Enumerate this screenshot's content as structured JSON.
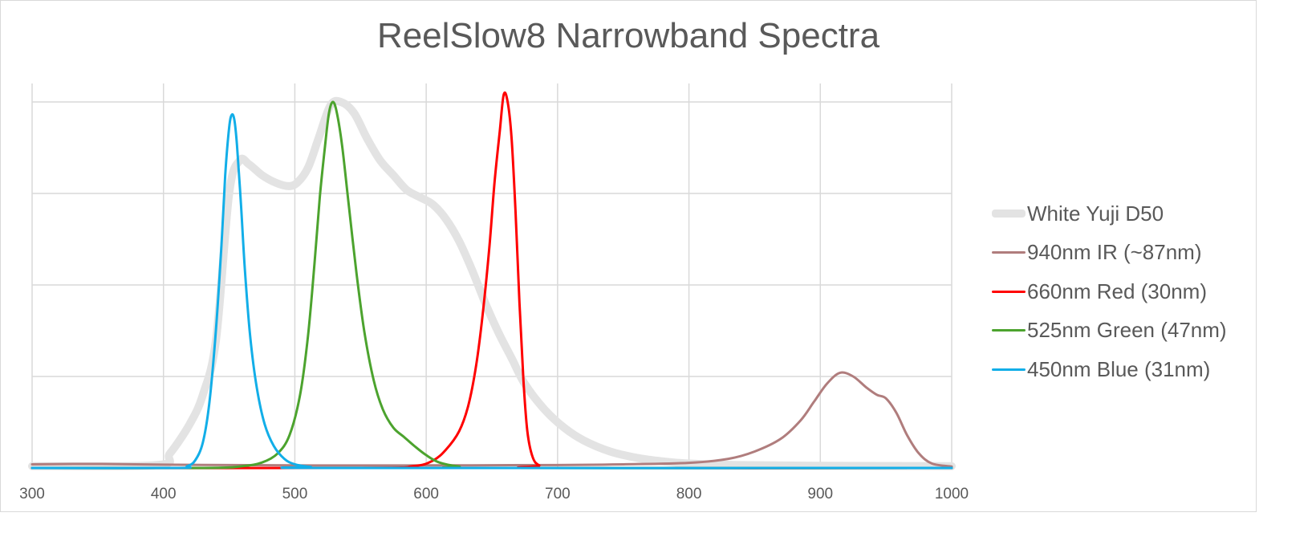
{
  "chart_data": {
    "type": "line",
    "title": "ReelSlow8 Narrowband Spectra",
    "xlabel": "",
    "ylabel": "",
    "xlim": [
      300,
      1000
    ],
    "ylim": [
      0,
      1.0
    ],
    "x_ticks": [
      300,
      400,
      500,
      600,
      700,
      800,
      900,
      1000
    ],
    "grid": true,
    "legend_position": "right",
    "series": [
      {
        "name": "White Yuji D50",
        "color": "#e3e3e3",
        "points": [
          [
            300,
            0.005
          ],
          [
            395,
            0.008
          ],
          [
            405,
            0.04
          ],
          [
            420,
            0.12
          ],
          [
            430,
            0.2
          ],
          [
            440,
            0.35
          ],
          [
            450,
            0.75
          ],
          [
            458,
            0.84
          ],
          [
            465,
            0.83
          ],
          [
            475,
            0.8
          ],
          [
            485,
            0.78
          ],
          [
            495,
            0.77
          ],
          [
            502,
            0.78
          ],
          [
            510,
            0.82
          ],
          [
            518,
            0.9
          ],
          [
            527,
            0.99
          ],
          [
            535,
            1.0
          ],
          [
            545,
            0.97
          ],
          [
            555,
            0.9
          ],
          [
            565,
            0.84
          ],
          [
            575,
            0.8
          ],
          [
            585,
            0.76
          ],
          [
            595,
            0.74
          ],
          [
            605,
            0.72
          ],
          [
            615,
            0.68
          ],
          [
            625,
            0.62
          ],
          [
            635,
            0.54
          ],
          [
            645,
            0.45
          ],
          [
            655,
            0.37
          ],
          [
            665,
            0.3
          ],
          [
            675,
            0.23
          ],
          [
            690,
            0.16
          ],
          [
            705,
            0.11
          ],
          [
            720,
            0.075
          ],
          [
            740,
            0.045
          ],
          [
            760,
            0.028
          ],
          [
            780,
            0.018
          ],
          [
            800,
            0.012
          ],
          [
            840,
            0.008
          ],
          [
            900,
            0.006
          ],
          [
            1000,
            0.005
          ]
        ]
      },
      {
        "name": "940nm IR (~87nm)",
        "color": "#b07d7d",
        "points": [
          [
            300,
            0.01
          ],
          [
            350,
            0.011
          ],
          [
            400,
            0.009
          ],
          [
            450,
            0.008
          ],
          [
            500,
            0.007
          ],
          [
            600,
            0.007
          ],
          [
            700,
            0.008
          ],
          [
            750,
            0.01
          ],
          [
            800,
            0.014
          ],
          [
            830,
            0.025
          ],
          [
            850,
            0.045
          ],
          [
            870,
            0.08
          ],
          [
            885,
            0.13
          ],
          [
            895,
            0.18
          ],
          [
            905,
            0.23
          ],
          [
            915,
            0.26
          ],
          [
            925,
            0.25
          ],
          [
            935,
            0.22
          ],
          [
            943,
            0.2
          ],
          [
            950,
            0.19
          ],
          [
            958,
            0.15
          ],
          [
            966,
            0.09
          ],
          [
            975,
            0.04
          ],
          [
            985,
            0.012
          ],
          [
            1000,
            0.004
          ]
        ]
      },
      {
        "name": "660nm Red (30nm)",
        "color": "#ff0000",
        "points": [
          [
            300,
            0.0
          ],
          [
            550,
            0.0
          ],
          [
            590,
            0.005
          ],
          [
            605,
            0.02
          ],
          [
            615,
            0.05
          ],
          [
            625,
            0.1
          ],
          [
            632,
            0.17
          ],
          [
            638,
            0.28
          ],
          [
            643,
            0.42
          ],
          [
            648,
            0.6
          ],
          [
            652,
            0.78
          ],
          [
            656,
            0.92
          ],
          [
            659,
            1.02
          ],
          [
            662,
            1.0
          ],
          [
            665,
            0.9
          ],
          [
            668,
            0.7
          ],
          [
            671,
            0.45
          ],
          [
            674,
            0.24
          ],
          [
            677,
            0.1
          ],
          [
            681,
            0.03
          ],
          [
            686,
            0.007
          ],
          [
            695,
            0.0
          ],
          [
            1000,
            0.0
          ]
        ]
      },
      {
        "name": "525nm Green (47nm)",
        "color": "#4ca32e",
        "points": [
          [
            300,
            0.0
          ],
          [
            430,
            0.0
          ],
          [
            460,
            0.005
          ],
          [
            475,
            0.015
          ],
          [
            487,
            0.04
          ],
          [
            496,
            0.09
          ],
          [
            504,
            0.2
          ],
          [
            510,
            0.36
          ],
          [
            515,
            0.56
          ],
          [
            519,
            0.74
          ],
          [
            523,
            0.88
          ],
          [
            526,
            0.97
          ],
          [
            529,
            1.0
          ],
          [
            532,
            0.97
          ],
          [
            536,
            0.88
          ],
          [
            541,
            0.72
          ],
          [
            547,
            0.53
          ],
          [
            553,
            0.37
          ],
          [
            560,
            0.24
          ],
          [
            567,
            0.16
          ],
          [
            575,
            0.11
          ],
          [
            583,
            0.085
          ],
          [
            591,
            0.06
          ],
          [
            600,
            0.035
          ],
          [
            610,
            0.015
          ],
          [
            625,
            0.004
          ],
          [
            645,
            0.0
          ],
          [
            1000,
            0.0
          ]
        ]
      },
      {
        "name": "450nm Blue (31nm)",
        "color": "#12aee8",
        "points": [
          [
            300,
            0.0
          ],
          [
            410,
            0.0
          ],
          [
            418,
            0.005
          ],
          [
            424,
            0.02
          ],
          [
            430,
            0.07
          ],
          [
            435,
            0.18
          ],
          [
            440,
            0.38
          ],
          [
            444,
            0.6
          ],
          [
            447,
            0.8
          ],
          [
            450,
            0.93
          ],
          [
            452,
            0.965
          ],
          [
            454,
            0.95
          ],
          [
            456,
            0.88
          ],
          [
            459,
            0.72
          ],
          [
            462,
            0.54
          ],
          [
            466,
            0.36
          ],
          [
            471,
            0.22
          ],
          [
            477,
            0.12
          ],
          [
            484,
            0.06
          ],
          [
            492,
            0.025
          ],
          [
            500,
            0.01
          ],
          [
            512,
            0.003
          ],
          [
            530,
            0.0
          ],
          [
            1000,
            0.0
          ]
        ]
      }
    ]
  }
}
